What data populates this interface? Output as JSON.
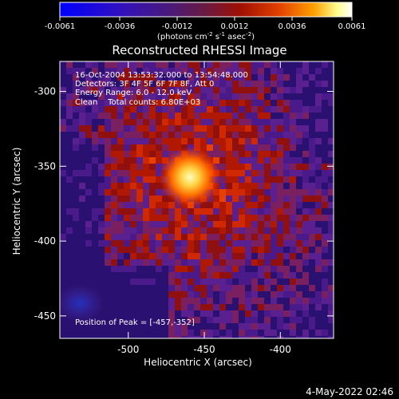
{
  "colorbar": {
    "ticks": [
      "-0.0061",
      "-0.0036",
      "-0.0012",
      "0.0012",
      "0.0036",
      "0.0061"
    ],
    "tick_values": [
      -0.0061,
      -0.0036,
      -0.0012,
      0.0012,
      0.0036,
      0.0061
    ],
    "units_main": "(photons cm",
    "units_exp1": "-2",
    "units_mid": " s",
    "units_exp2": "-1",
    "units_end": " asec",
    "units_exp3": "-2",
    "units_close": ")"
  },
  "image": {
    "title": "Reconstructed RHESSI Image",
    "info_lines": [
      "16-Oct-2004 13:53:32.000 to 13:54:48.000",
      "Detectors: 3F 4F 5F 6F 7F 8F, Att 0",
      "Energy Range: 6.0 - 12.0 keV",
      "Clean    Total counts: 6.80E+03"
    ],
    "peak_label": "Position of Peak = [-457,-352]"
  },
  "axes": {
    "xlabel": "Heliocentric X (arcsec)",
    "ylabel": "Heliocentric Y (arcsec)",
    "xticks": [
      "-500",
      "-450",
      "-400"
    ],
    "yticks": [
      "-300",
      "-350",
      "-400",
      "-450"
    ],
    "xtick_values": [
      -500,
      -450,
      -400
    ],
    "ytick_values": [
      -300,
      -350,
      -400,
      -450
    ],
    "xlim": [
      -545,
      -365
    ],
    "ylim": [
      -465,
      -280
    ]
  },
  "timestamp": "4-May-2022 02:46",
  "colors": {
    "background": "#000000",
    "foreground": "#ffffff",
    "colormap": [
      "#0000ff",
      "#4b0088",
      "#7a2a8a",
      "#8a1010",
      "#e03000",
      "#ff9000",
      "#ffff80",
      "#ffffff"
    ]
  }
}
